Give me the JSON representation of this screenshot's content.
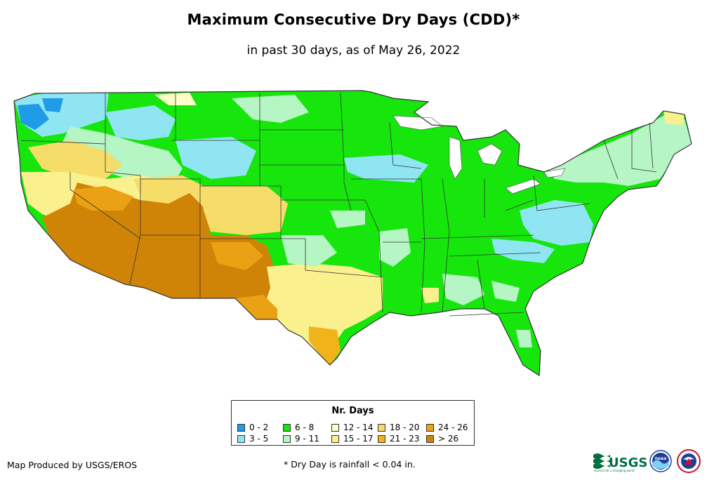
{
  "title": "Maximum Consecutive Dry Days (CDD)*",
  "subtitle": "in past 30 days, as of May 26, 2022",
  "legend": {
    "title": "Nr. Days",
    "items": [
      {
        "label": "0 - 2",
        "color": "#1f9be8"
      },
      {
        "label": "3 - 5",
        "color": "#8fe6f2"
      },
      {
        "label": "6 - 8",
        "color": "#16e60c"
      },
      {
        "label": "9 - 11",
        "color": "#b6f5c4"
      },
      {
        "label": "12 - 14",
        "color": "#fdfdc8"
      },
      {
        "label": "15 - 17",
        "color": "#fbf08e"
      },
      {
        "label": "18 - 20",
        "color": "#f6dd6a"
      },
      {
        "label": "21 - 23",
        "color": "#f1b31a"
      },
      {
        "label": "24 - 26",
        "color": "#eaa114"
      },
      {
        "label": "> 26",
        "color": "#cf8407"
      }
    ]
  },
  "credit": "Map Produced by USGS/EROS",
  "footnote": "* Dry Day is rainfall < 0.04 in.",
  "logos": {
    "usgs_text": "USGS",
    "usgs_tagline": "science for a changing world",
    "noaa_text": "noaa"
  }
}
